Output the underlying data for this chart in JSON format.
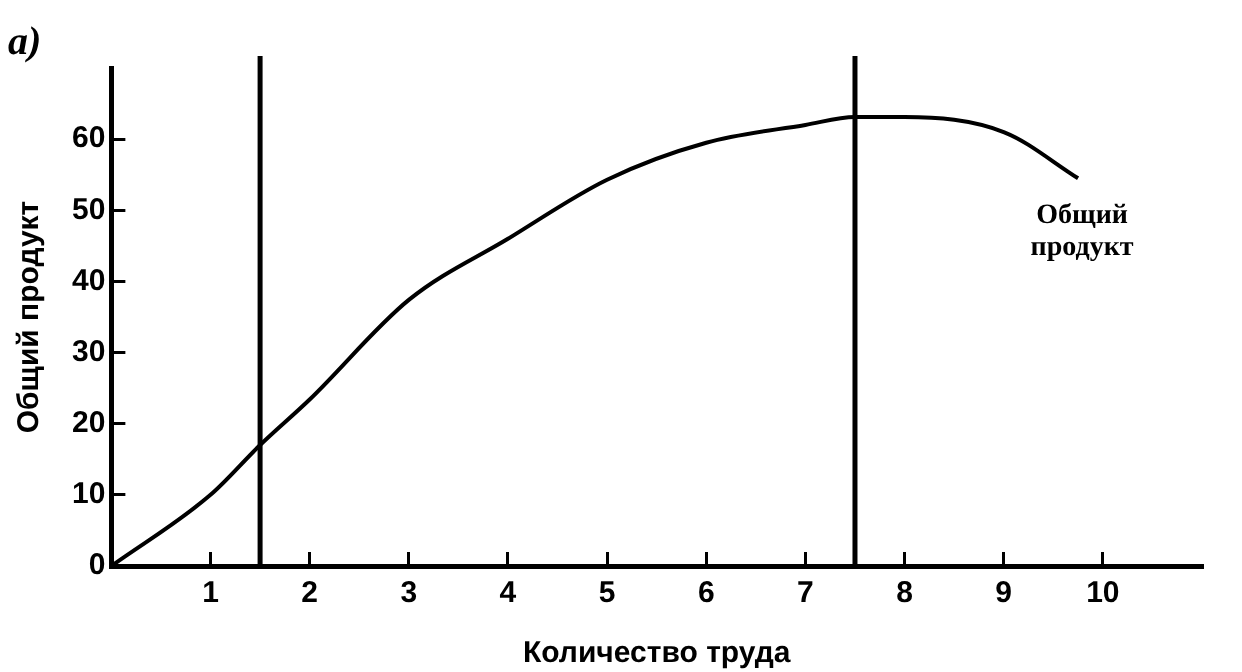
{
  "chart_data": {
    "type": "line",
    "title": "а)",
    "xlabel": "Количество труда",
    "ylabel": "Общий продукт",
    "x": [
      0,
      1,
      1.5,
      2,
      3,
      4,
      5,
      6,
      7,
      7.5,
      8,
      9,
      9.75
    ],
    "series": [
      {
        "name": "Общий продукт",
        "color": "#000000",
        "values": [
          0,
          10,
          17,
          23.4,
          37.4,
          46,
          54.3,
          59.5,
          62,
          63.1,
          63.1,
          61,
          54.5
        ]
      }
    ],
    "xlim": [
      0,
      11
    ],
    "xticks": [
      1,
      2,
      3,
      4,
      5,
      6,
      7,
      8,
      9,
      10
    ],
    "ylim": [
      0,
      70
    ],
    "yticks": [
      0,
      10,
      20,
      30,
      40,
      50,
      60
    ],
    "ref_lines": [
      {
        "axis": "x",
        "value": 1.5
      },
      {
        "axis": "x",
        "value": 7.5
      }
    ],
    "grid": false,
    "legend": false,
    "marker": "none",
    "line_style": "solid"
  }
}
